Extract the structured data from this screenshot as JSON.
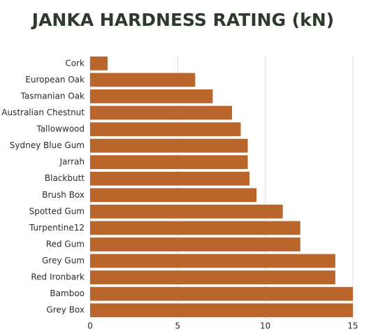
{
  "chart_data": {
    "type": "bar",
    "orientation": "horizontal",
    "title": "JANKA HARDNESS RATING (kN)",
    "categories": [
      "Cork",
      "European Oak",
      "Tasmanian Oak",
      "Australian Chestnut",
      "Tallowwood",
      "Sydney Blue Gum",
      "Jarrah",
      "Blackbutt",
      "Brush Box",
      "Spotted Gum",
      "Turpentine12",
      "Red Gum",
      "Grey Gum",
      "Red Ironbark",
      "Bamboo",
      "Grey Box"
    ],
    "values": [
      1.0,
      6.0,
      7.0,
      8.1,
      8.6,
      9.0,
      9.0,
      9.1,
      9.5,
      11.0,
      12.0,
      12.0,
      14.0,
      14.0,
      15.0,
      15.0
    ],
    "color": "#b9652b",
    "xlim": [
      0,
      15
    ],
    "xticks": [
      0,
      5,
      10,
      15
    ],
    "grid": true
  }
}
